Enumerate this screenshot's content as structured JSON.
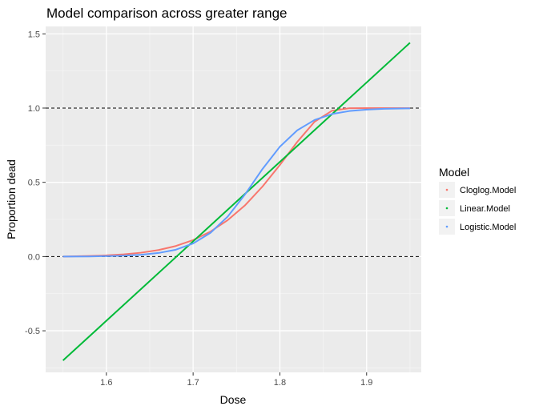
{
  "chart_data": {
    "type": "line",
    "title": "Model comparison across greater range",
    "xlabel": "Dose",
    "ylabel": "Proportion dead",
    "xlim": [
      1.53,
      1.963
    ],
    "ylim": [
      -0.78,
      1.55
    ],
    "x_ticks": [
      1.6,
      1.7,
      1.8,
      1.9
    ],
    "x_tick_labels": [
      "1.6",
      "1.7",
      "1.8",
      "1.9"
    ],
    "y_ticks": [
      -0.5,
      0.0,
      0.5,
      1.0,
      1.5
    ],
    "y_tick_labels": [
      "-0.5",
      "0.0",
      "0.5",
      "1.0",
      "1.5"
    ],
    "reference_lines": [
      0.0,
      1.0
    ],
    "legend": {
      "title": "Model",
      "position": "right",
      "entries": [
        "Cloglog.Model",
        "Linear.Model",
        "Logistic.Model"
      ]
    },
    "grid": true,
    "series": [
      {
        "name": "Cloglog.Model",
        "color": "#F8766D",
        "x": [
          1.55,
          1.58,
          1.6,
          1.62,
          1.64,
          1.66,
          1.68,
          1.7,
          1.72,
          1.74,
          1.76,
          1.78,
          1.8,
          1.82,
          1.84,
          1.86,
          1.88,
          1.9,
          1.92,
          1.95
        ],
        "values": [
          0.0,
          0.004,
          0.008,
          0.015,
          0.026,
          0.044,
          0.071,
          0.111,
          0.168,
          0.246,
          0.346,
          0.472,
          0.617,
          0.772,
          0.908,
          0.982,
          0.999,
          1.0,
          1.0,
          1.0
        ]
      },
      {
        "name": "Linear.Model",
        "color": "#00BA38",
        "x": [
          1.55,
          1.95
        ],
        "values": [
          -0.7,
          1.44
        ]
      },
      {
        "name": "Logistic.Model",
        "color": "#619CFF",
        "x": [
          1.55,
          1.58,
          1.6,
          1.62,
          1.64,
          1.66,
          1.68,
          1.7,
          1.72,
          1.74,
          1.76,
          1.78,
          1.8,
          1.82,
          1.84,
          1.86,
          1.88,
          1.9,
          1.92,
          1.95
        ],
        "values": [
          0.0,
          0.001,
          0.003,
          0.006,
          0.012,
          0.024,
          0.046,
          0.088,
          0.16,
          0.27,
          0.42,
          0.59,
          0.74,
          0.85,
          0.92,
          0.96,
          0.98,
          0.99,
          0.995,
          0.998
        ]
      }
    ]
  }
}
